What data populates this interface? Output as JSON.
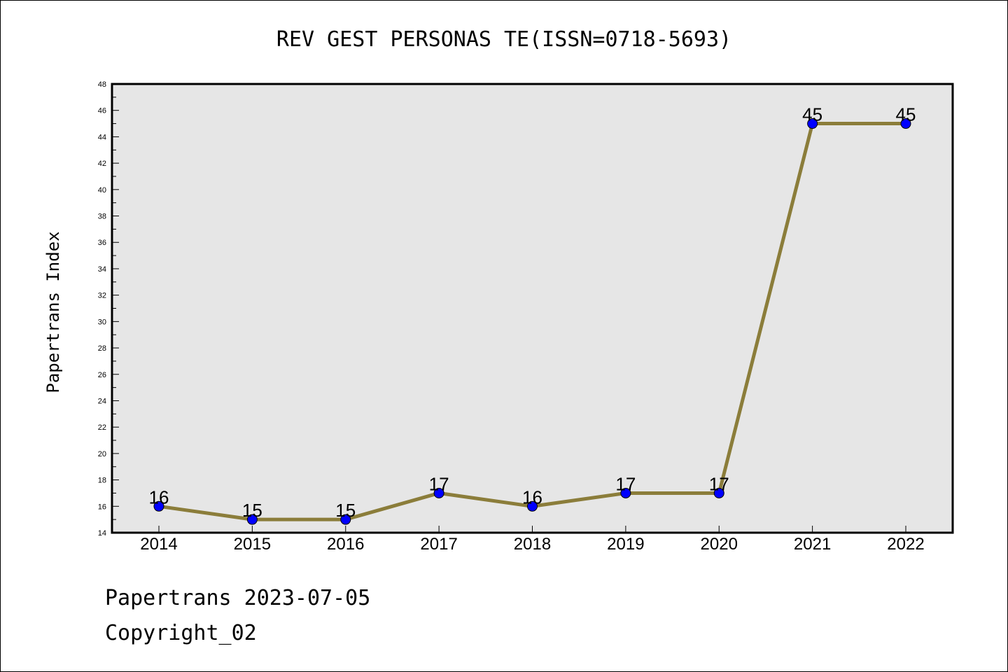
{
  "chart_data": {
    "type": "line",
    "title": "REV GEST PERSONAS TE(ISSN=0718-5693)",
    "xlabel": "",
    "ylabel": "Papertrans Index",
    "categories": [
      "2014",
      "2015",
      "2016",
      "2017",
      "2018",
      "2019",
      "2020",
      "2021",
      "2022"
    ],
    "series": [
      {
        "values": [
          16,
          15,
          15,
          17,
          16,
          17,
          17,
          45,
          45
        ]
      }
    ],
    "data_labels": [
      "16",
      "15",
      "15",
      "17",
      "16",
      "17",
      "17",
      "45",
      "45"
    ],
    "ylim": [
      14,
      48
    ],
    "yticks": [
      "14",
      "16",
      "18",
      "20",
      "22",
      "24",
      "26",
      "28",
      "30",
      "32",
      "34",
      "36",
      "38",
      "40",
      "42",
      "44",
      "46",
      "48"
    ],
    "grid": false,
    "legend": "none",
    "colors": {
      "line": "#8b7d3a",
      "marker": "#0000ff",
      "plot_background": "#e6e6e6"
    }
  },
  "footer": {
    "line1": "Papertrans 2023-07-05",
    "line2": "Copyright_02"
  }
}
